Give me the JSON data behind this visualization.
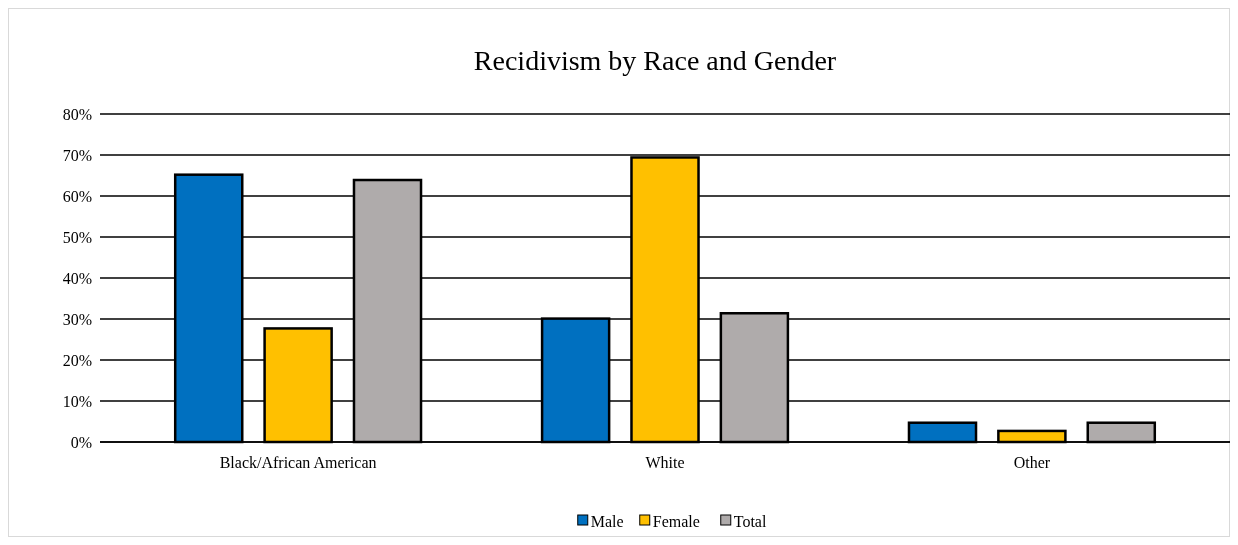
{
  "chart_data": {
    "type": "bar",
    "title": "Recidivism by Race and Gender",
    "categories": [
      "Black/African American",
      "White",
      "Other"
    ],
    "series": [
      {
        "name": "Male",
        "color": "#0070c0",
        "values": [
          65.2,
          30.1,
          4.7
        ]
      },
      {
        "name": "Female",
        "color": "#ffc000",
        "values": [
          27.7,
          69.4,
          2.7
        ]
      },
      {
        "name": "Total",
        "color": "#afabab",
        "values": [
          63.9,
          31.4,
          4.7
        ]
      }
    ],
    "ylim": [
      0,
      80
    ],
    "yticks": [
      {
        "value": 0,
        "label": "0%"
      },
      {
        "value": 10,
        "label": "10%"
      },
      {
        "value": 20,
        "label": "20%"
      },
      {
        "value": 30,
        "label": "30%"
      },
      {
        "value": 40,
        "label": "40%"
      },
      {
        "value": 50,
        "label": "50%"
      },
      {
        "value": 60,
        "label": "60%"
      },
      {
        "value": 70,
        "label": "70%"
      },
      {
        "value": 80,
        "label": "80%"
      }
    ],
    "grid": "y",
    "legend": "bottom"
  }
}
